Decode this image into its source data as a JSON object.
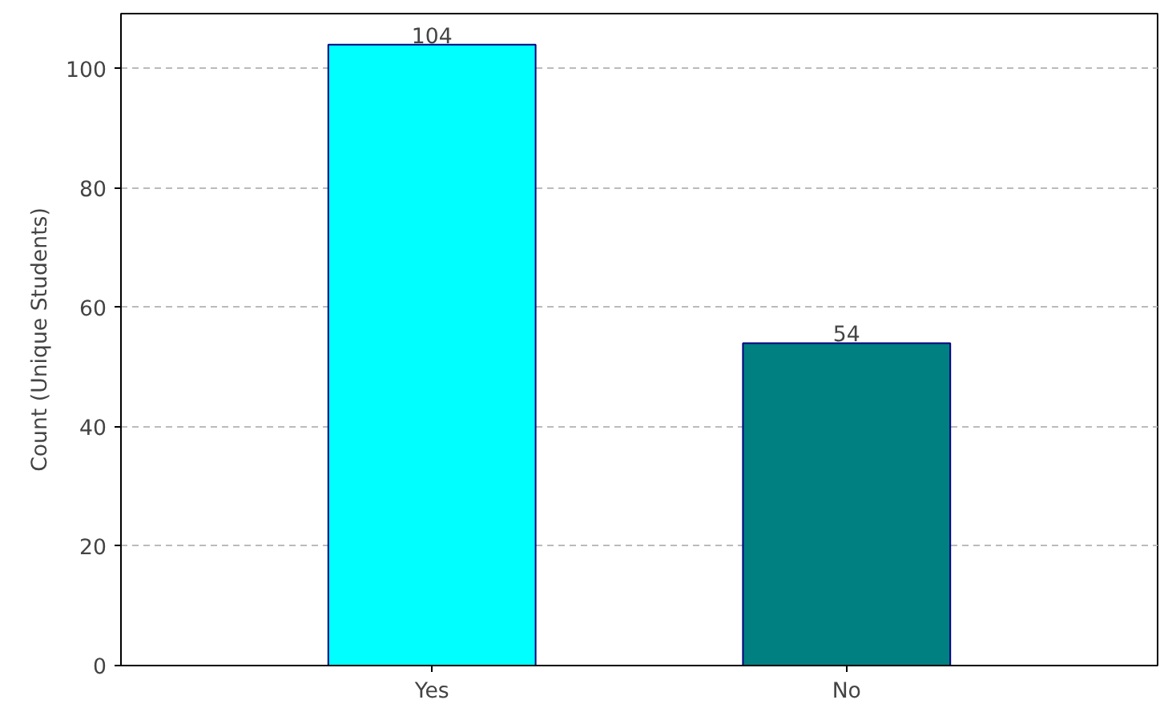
{
  "chart_data": {
    "type": "bar",
    "ylabel": "Count (Unique Students)",
    "categories": [
      "Yes",
      "No"
    ],
    "values": [
      104,
      54
    ],
    "colors": [
      "#00ffff",
      "#008080"
    ],
    "ylim": [
      0,
      109.2
    ],
    "yticks": [
      0,
      20,
      40,
      60,
      80,
      100
    ],
    "grid": "y",
    "data_labels": true
  }
}
